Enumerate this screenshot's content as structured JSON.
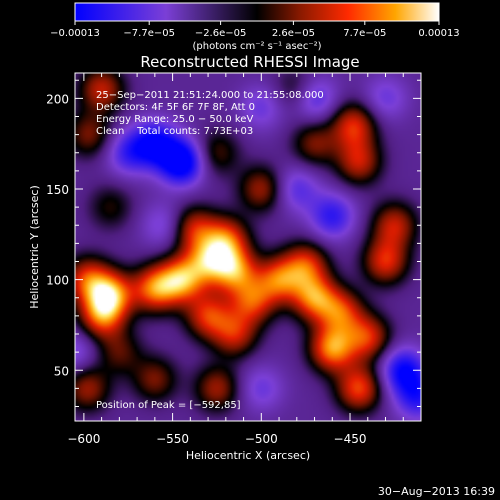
{
  "chart_data": {
    "type": "heatmap",
    "title": "Reconstructed RHESSI Image",
    "xlabel": "Heliocentric X (arcsec)",
    "ylabel": "Heliocentric Y (arcsec)",
    "xlim": [
      -605,
      -410
    ],
    "ylim": [
      22,
      214
    ],
    "x_ticks": [
      -600,
      -550,
      -500,
      -450
    ],
    "x_tick_labels": [
      "−600",
      "−550",
      "−500",
      "−450"
    ],
    "y_ticks": [
      50,
      100,
      150,
      200
    ],
    "y_tick_labels": [
      "50",
      "100",
      "150",
      "200"
    ],
    "colorbar": {
      "range": [
        -0.00013,
        0.00013
      ],
      "ticks": [
        -0.00013,
        -7.7e-05,
        -2.6e-05,
        2.6e-05,
        7.7e-05,
        0.00013
      ],
      "tick_labels": [
        "−0.00013",
        "−7.7e−05",
        "−2.6e−05",
        "2.6e−05",
        "7.7e−05",
        "0.00013"
      ],
      "unit_label": "(photons cm⁻² s⁻¹ asec⁻²)"
    },
    "annotations": [
      "25−Sep−2011 21:51:24.000 to 21:55:08.000",
      "Detectors: 4F 5F 6F 7F 8F, Att 0",
      "Energy Range: 25.0 − 50.0 keV",
      "Clean    Total counts: 7.73E+03"
    ],
    "peak_label": "Position of Peak = [−592,85]",
    "peak": {
      "x": -592,
      "y": 85
    },
    "blobs": [
      {
        "x": -585,
        "y": 92,
        "v": 0.00012
      },
      {
        "x": -598,
        "y": 100,
        "v": 9e-05
      },
      {
        "x": -590,
        "y": 80,
        "v": 0.0001
      },
      {
        "x": -560,
        "y": 95,
        "v": 0.00011
      },
      {
        "x": -545,
        "y": 100,
        "v": 0.00012
      },
      {
        "x": -530,
        "y": 110,
        "v": 0.0001
      },
      {
        "x": -515,
        "y": 105,
        "v": 0.00011
      },
      {
        "x": -520,
        "y": 122,
        "v": 0.0001
      },
      {
        "x": -538,
        "y": 128,
        "v": 8e-05
      },
      {
        "x": -490,
        "y": 100,
        "v": 0.0001
      },
      {
        "x": -475,
        "y": 108,
        "v": 9e-05
      },
      {
        "x": -470,
        "y": 90,
        "v": 0.00011
      },
      {
        "x": -455,
        "y": 82,
        "v": 9e-05
      },
      {
        "x": -460,
        "y": 62,
        "v": 0.00012
      },
      {
        "x": -440,
        "y": 68,
        "v": 9e-05
      },
      {
        "x": -445,
        "y": 40,
        "v": 0.0001
      },
      {
        "x": -430,
        "y": 110,
        "v": 9e-05
      },
      {
        "x": -425,
        "y": 130,
        "v": 8e-05
      },
      {
        "x": -445,
        "y": 165,
        "v": 8e-05
      },
      {
        "x": -448,
        "y": 185,
        "v": 9e-05
      },
      {
        "x": -470,
        "y": 175,
        "v": 6e-05
      },
      {
        "x": -500,
        "y": 150,
        "v": 7e-05
      },
      {
        "x": -530,
        "y": 80,
        "v": 9e-05
      },
      {
        "x": -515,
        "y": 70,
        "v": 8e-05
      },
      {
        "x": -505,
        "y": 88,
        "v": 9e-05
      },
      {
        "x": -525,
        "y": 40,
        "v": 7e-05
      },
      {
        "x": -560,
        "y": 45,
        "v": 6e-05
      },
      {
        "x": -580,
        "y": 60,
        "v": 5e-05
      },
      {
        "x": -598,
        "y": 40,
        "v": 7e-05
      },
      {
        "x": -585,
        "y": 140,
        "v": 4e-05
      },
      {
        "x": -597,
        "y": 180,
        "v": 6e-05
      },
      {
        "x": -590,
        "y": 205,
        "v": 8e-05
      },
      {
        "x": -525,
        "y": 170,
        "v": 5e-05
      },
      {
        "x": -480,
        "y": 205,
        "v": 4e-05
      },
      {
        "x": -545,
        "y": 165,
        "v": -0.00012
      },
      {
        "x": -560,
        "y": 175,
        "v": -9e-05
      },
      {
        "x": -460,
        "y": 135,
        "v": -7e-05
      },
      {
        "x": -575,
        "y": 170,
        "v": -6e-05
      },
      {
        "x": -480,
        "y": 150,
        "v": -5e-05
      },
      {
        "x": -420,
        "y": 50,
        "v": -9e-05
      },
      {
        "x": -412,
        "y": 35,
        "v": -7e-05
      },
      {
        "x": -500,
        "y": 40,
        "v": -4e-05
      },
      {
        "x": -555,
        "y": 130,
        "v": -4e-05
      },
      {
        "x": -470,
        "y": 200,
        "v": -6e-05
      },
      {
        "x": -430,
        "y": 200,
        "v": -4e-05
      },
      {
        "x": -605,
        "y": 60,
        "v": -4e-05
      },
      {
        "x": -500,
        "y": 195,
        "v": -4e-05
      }
    ]
  },
  "footer_timestamp": "30−Aug−2013 16:39"
}
